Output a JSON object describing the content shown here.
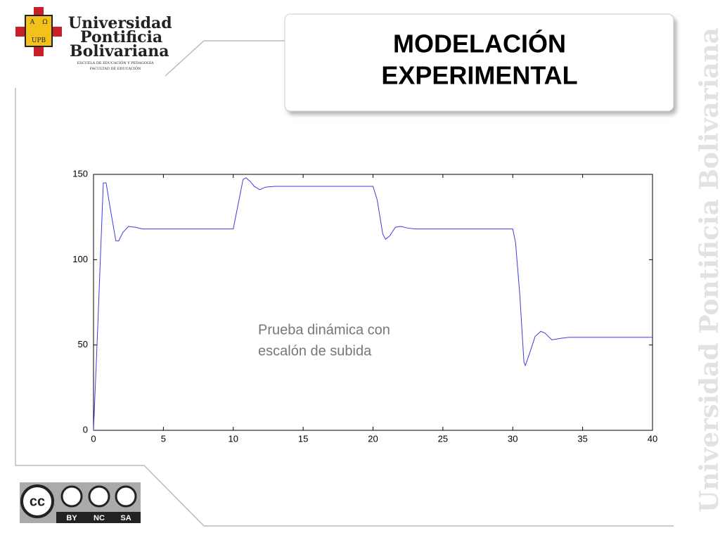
{
  "logo": {
    "name_lines": [
      "Universidad",
      "Pontificia",
      "Bolivariana"
    ],
    "school": "ESCUELA DE EDUCACIÓN Y PEDAGOGÍA",
    "faculty": "FACULTAD DE EDUCACIÓN",
    "shield_top_left": "A",
    "shield_top_right": "Ω",
    "shield_bottom": "UPB"
  },
  "title": [
    "MODELACIÓN",
    "EXPERIMENTAL"
  ],
  "watermark": "Universidad Pontificia Bolivariana",
  "license": {
    "cc": "cc",
    "labels": [
      "BY",
      "NC",
      "SA"
    ]
  },
  "chart_data": {
    "type": "line",
    "annotation": [
      "Prueba dinámica con",
      "escalón de subida"
    ],
    "x": [
      0,
      0.3,
      0.7,
      0.9,
      1.2,
      1.6,
      1.8,
      2.1,
      2.5,
      3,
      3.5,
      4,
      10,
      10.7,
      10.9,
      11.2,
      11.5,
      11.9,
      12.3,
      13,
      20,
      20.3,
      20.7,
      20.9,
      21.2,
      21.6,
      22,
      22.5,
      23,
      30,
      30.2,
      30.5,
      30.8,
      30.9,
      31.2,
      31.6,
      32,
      32.3,
      32.8,
      33.5,
      34,
      40
    ],
    "series": [
      {
        "color": "#3d3de0",
        "values": [
          0,
          60,
          145,
          145,
          130,
          111,
          111,
          116,
          119.5,
          119,
          118,
          118,
          118,
          147,
          148,
          146,
          143,
          141,
          142.5,
          143,
          143,
          135,
          115,
          112,
          114,
          119,
          119.5,
          118.5,
          118,
          118,
          110,
          80,
          40,
          38,
          45,
          55,
          58,
          57,
          53,
          54,
          54.5,
          54.5
        ]
      }
    ],
    "xlim": [
      0,
      40
    ],
    "xticks": [
      0,
      5,
      10,
      15,
      20,
      25,
      30,
      35,
      40
    ],
    "ylim": [
      0,
      150
    ],
    "yticks": [
      0,
      50,
      100,
      150
    ]
  }
}
